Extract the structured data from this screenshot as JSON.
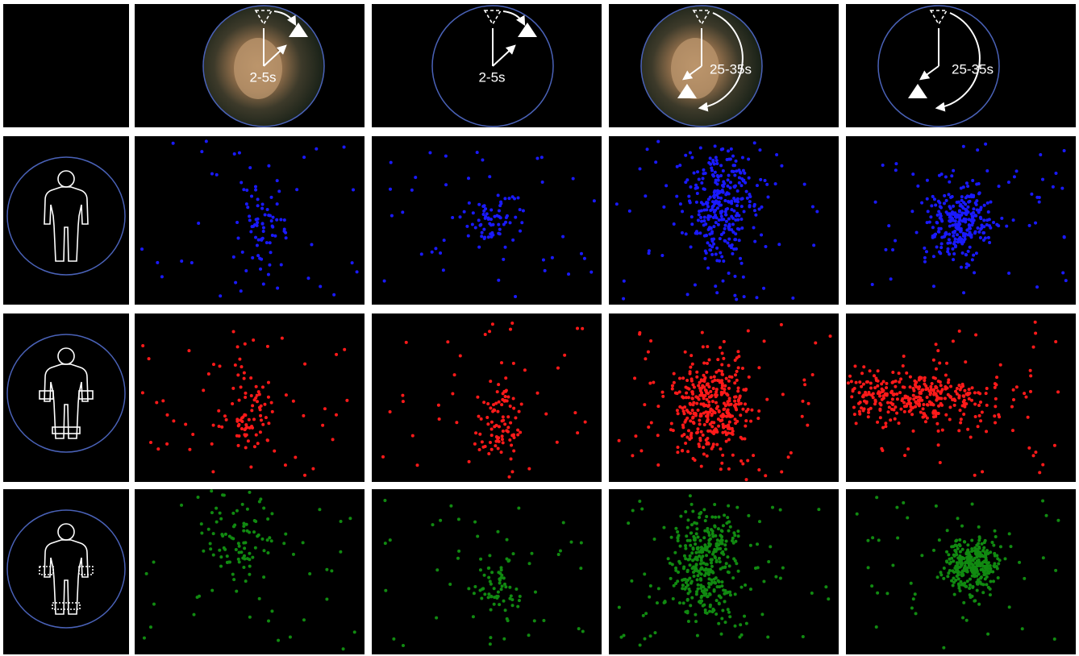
{
  "top_row": {
    "labels": [
      "2-5s",
      "2-5s",
      "25-35s",
      "25-35s"
    ]
  }
}
